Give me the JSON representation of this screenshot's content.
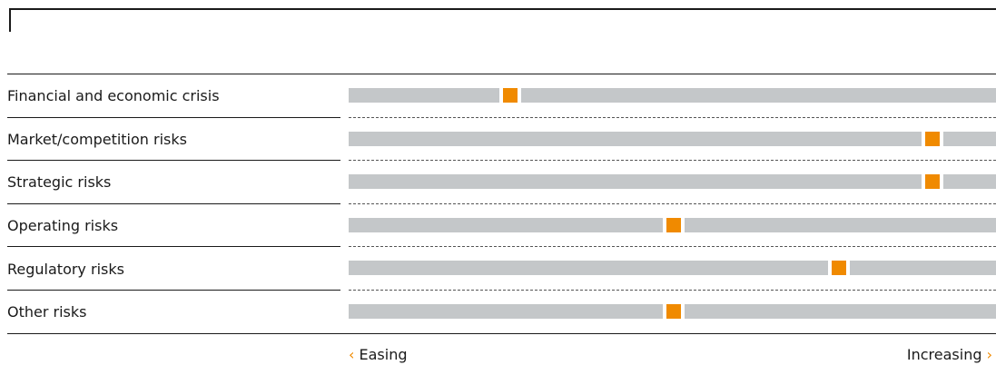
{
  "colors": {
    "track": "#c4c7c9",
    "marker": "#f08a00",
    "text": "#1a1a1a"
  },
  "chart_data": {
    "type": "bar",
    "title": "",
    "categories": [
      "Financial and economic crisis",
      "Market/competition risks",
      "Strategic risks",
      "Operating risks",
      "Regulatory risks",
      "Other risks"
    ],
    "values": [
      0.25,
      0.902,
      0.902,
      0.502,
      0.757,
      0.502
    ],
    "scale": {
      "min": 0,
      "max": 1
    },
    "axis": {
      "left_label": "Easing",
      "right_label": "Increasing",
      "left_icon": "chevron-left-icon",
      "right_icon": "chevron-right-icon"
    },
    "grid": false,
    "legend": "none"
  }
}
